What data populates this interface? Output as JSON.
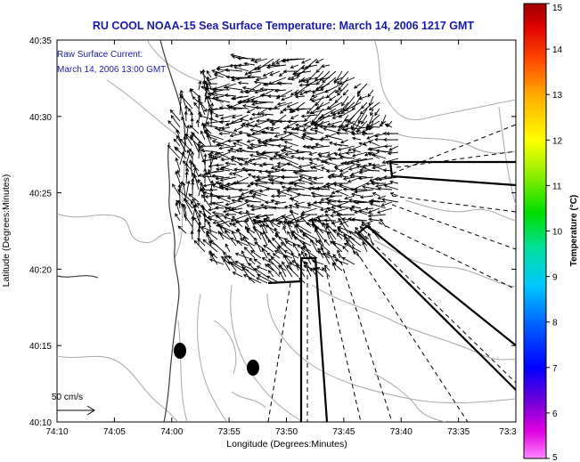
{
  "title": "RU COOL  NOAA-15  Sea Surface Temperature:  March 14, 2006 1217 GMT",
  "annotation": {
    "line1": "Raw Surface Current:",
    "line2": "March 14, 2006 13:00 GMT"
  },
  "scale_label": "50 cm/s",
  "xlabel": "Longitude (Degrees:Minutes)",
  "ylabel": "Latitude (Degrees:Minutes)",
  "x_ticks": [
    "74:10",
    "74:05",
    "74:00",
    "73:55",
    "73:50",
    "73:45",
    "73:40",
    "73:35",
    "73:3"
  ],
  "y_ticks": [
    "40:35",
    "40:30",
    "40:25",
    "40:20",
    "40:15",
    "40:10"
  ],
  "colorbar": {
    "label": "Temperature (°C)",
    "ticks": [
      "15",
      "14",
      "13",
      "12",
      "11",
      "10",
      "9",
      "8",
      "7",
      "6",
      "5"
    ]
  },
  "colors": {
    "title_text": "#1a1aa8",
    "annotation_text": "#1a1aa8",
    "land_contour": "#999999",
    "coast": "#444444",
    "vectors": "#000000"
  },
  "icons": [
    "north-arrow-scale-icon",
    "station-marker-icon"
  ]
}
